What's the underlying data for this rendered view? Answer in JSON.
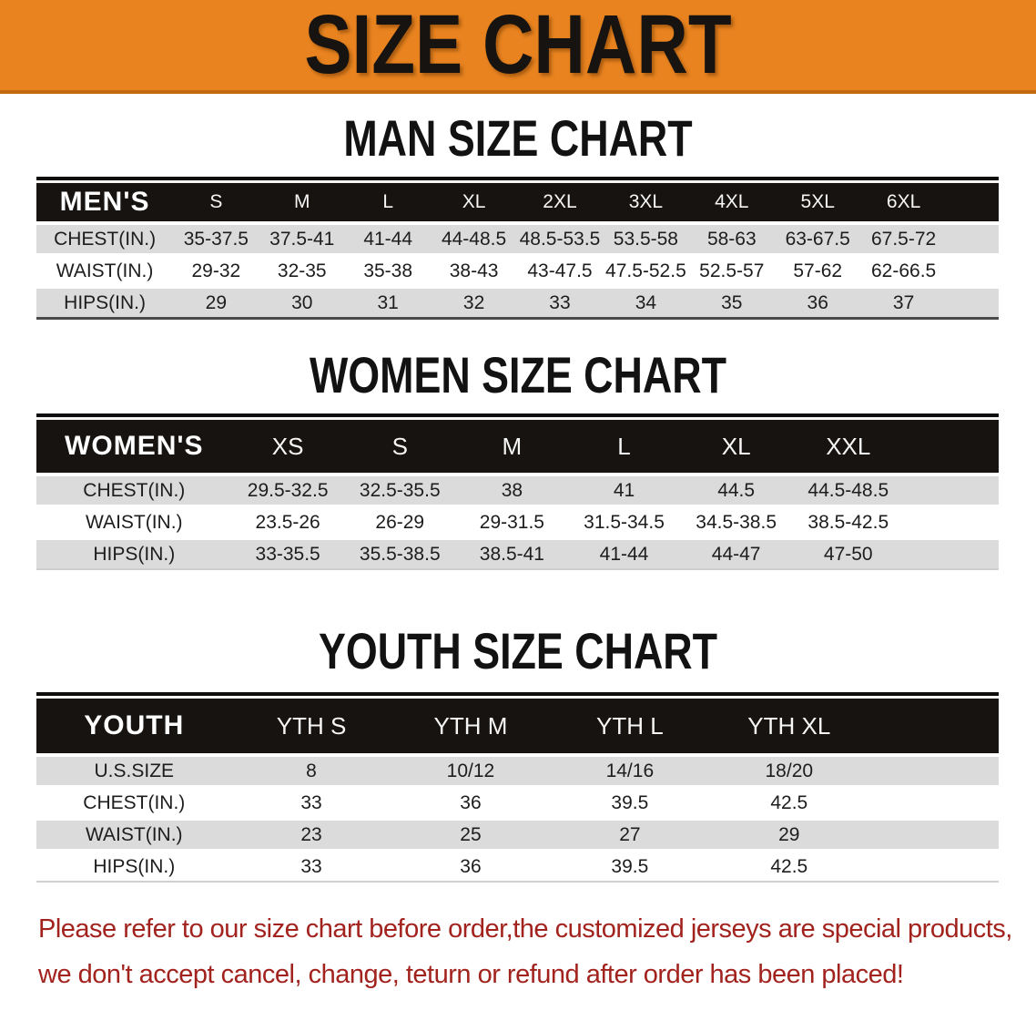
{
  "banner": {
    "title": "SIZE CHART",
    "bg_color": "#E8831F",
    "border_color": "#C36A10"
  },
  "sections": [
    {
      "heading": "MAN SIZE CHART",
      "corner": "MEN'S",
      "columns": [
        "S",
        "M",
        "L",
        "XL",
        "2XL",
        "3XL",
        "4XL",
        "5XL",
        "6XL"
      ],
      "rows": [
        {
          "label": "CHEST(IN.)",
          "values": [
            "35-37.5",
            "37.5-41",
            "41-44",
            "44-48.5",
            "48.5-53.5",
            "53.5-58",
            "58-63",
            "63-67.5",
            "67.5-72"
          ]
        },
        {
          "label": "WAIST(IN.)",
          "values": [
            "29-32",
            "32-35",
            "35-38",
            "38-43",
            "43-47.5",
            "47.5-52.5",
            "52.5-57",
            "57-62",
            "62-66.5"
          ]
        },
        {
          "label": "HIPS(IN.)",
          "values": [
            "29",
            "30",
            "31",
            "32",
            "33",
            "34",
            "35",
            "36",
            "37"
          ]
        }
      ]
    },
    {
      "heading": "WOMEN SIZE CHART",
      "corner": "WOMEN'S",
      "columns": [
        "XS",
        "S",
        "M",
        "L",
        "XL",
        "XXL"
      ],
      "rows": [
        {
          "label": "CHEST(IN.)",
          "values": [
            "29.5-32.5",
            "32.5-35.5",
            "38",
            "41",
            "44.5",
            "44.5-48.5"
          ]
        },
        {
          "label": "WAIST(IN.)",
          "values": [
            "23.5-26",
            "26-29",
            "29-31.5",
            "31.5-34.5",
            "34.5-38.5",
            "38.5-42.5"
          ]
        },
        {
          "label": "HIPS(IN.)",
          "values": [
            "33-35.5",
            "35.5-38.5",
            "38.5-41",
            "41-44",
            "44-47",
            "47-50"
          ]
        }
      ]
    },
    {
      "heading": "YOUTH SIZE CHART",
      "corner": "YOUTH",
      "columns": [
        "YTH S",
        "YTH M",
        "YTH L",
        "YTH XL"
      ],
      "rows": [
        {
          "label": "U.S.SIZE",
          "values": [
            "8",
            "10/12",
            "14/16",
            "18/20"
          ]
        },
        {
          "label": "CHEST(IN.)",
          "values": [
            "33",
            "36",
            "39.5",
            "42.5"
          ]
        },
        {
          "label": "WAIST(IN.)",
          "values": [
            "23",
            "25",
            "27",
            "29"
          ]
        },
        {
          "label": "HIPS(IN.)",
          "values": [
            "33",
            "36",
            "39.5",
            "42.5"
          ]
        }
      ]
    }
  ],
  "table_colors": {
    "header_bg": "#171310",
    "row_gray": "#DBDBDB",
    "row_white": "#FFFFFF"
  },
  "footer": {
    "line1": "Please refer to our size chart before order,the customized jerseys are special products,",
    "line2": "we don't accept cancel, change, teturn or refund after order has been placed!",
    "color": "#A2231E"
  }
}
